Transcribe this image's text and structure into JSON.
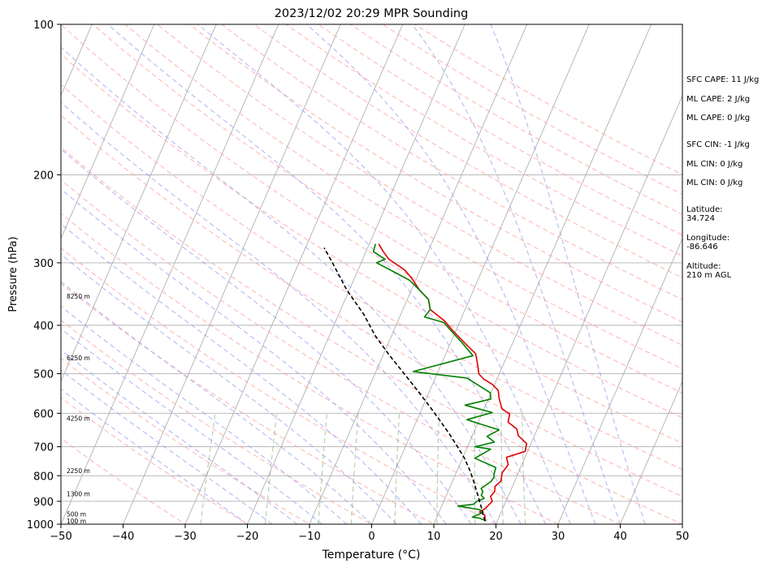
{
  "chart_data": {
    "type": "line",
    "title": "2023/12/02 20:29 MPR Sounding",
    "xlabel": "Temperature (°C)",
    "ylabel": "Pressure (hPa)",
    "xlim": [
      -50,
      50
    ],
    "ylim": [
      1000,
      100
    ],
    "y_scale": "log",
    "x_ticks": [
      "−50",
      "−40",
      "−30",
      "−20",
      "−10",
      "0",
      "10",
      "20",
      "30",
      "40",
      "50"
    ],
    "y_ticks": [
      "100",
      "200",
      "300",
      "400",
      "500",
      "600",
      "700",
      "800",
      "900",
      "1000"
    ],
    "grid": true,
    "height_labels": [
      {
        "p": 985,
        "label": "100 m"
      },
      {
        "p": 955,
        "label": "500 m"
      },
      {
        "p": 870,
        "label": "1300 m"
      },
      {
        "p": 782,
        "label": "2250 m"
      },
      {
        "p": 614,
        "label": "4250 m"
      },
      {
        "p": 465,
        "label": "6250 m"
      },
      {
        "p": 350,
        "label": "8250 m"
      }
    ],
    "series": [
      {
        "role": "temperature",
        "color": "#e00000",
        "points": [
          [
            18.0,
            985
          ],
          [
            17.6,
            960
          ],
          [
            16.5,
            945
          ],
          [
            17.2,
            930
          ],
          [
            17.8,
            900
          ],
          [
            17.2,
            880
          ],
          [
            17.5,
            860
          ],
          [
            17.2,
            840
          ],
          [
            17.8,
            820
          ],
          [
            17.4,
            790
          ],
          [
            17.8,
            760
          ],
          [
            17.0,
            735
          ],
          [
            19.6,
            715
          ],
          [
            19.3,
            690
          ],
          [
            17.4,
            665
          ],
          [
            16.7,
            645
          ],
          [
            14.8,
            625
          ],
          [
            14.5,
            602
          ],
          [
            12.9,
            588
          ],
          [
            11.7,
            560
          ],
          [
            11.0,
            540
          ],
          [
            9.6,
            525
          ],
          [
            7.8,
            512
          ],
          [
            6.7,
            500
          ],
          [
            5.9,
            480
          ],
          [
            4.8,
            456
          ],
          [
            2.4,
            435
          ],
          [
            -0.5,
            410
          ],
          [
            -2.5,
            392
          ],
          [
            -5.6,
            372
          ],
          [
            -6.6,
            355
          ],
          [
            -8.7,
            340
          ],
          [
            -10.8,
            322
          ],
          [
            -12.5,
            310
          ],
          [
            -15.8,
            295
          ],
          [
            -17.2,
            285
          ],
          [
            -18.5,
            275
          ]
        ]
      },
      {
        "role": "dewpoint",
        "color": "#008000",
        "points": [
          [
            18.2,
            985
          ],
          [
            17.0,
            973
          ],
          [
            15.7,
            968
          ],
          [
            16.8,
            952
          ],
          [
            17.0,
            943
          ],
          [
            16.3,
            935
          ],
          [
            12.6,
            920
          ],
          [
            15.0,
            912
          ],
          [
            15.4,
            898
          ],
          [
            16.3,
            888
          ],
          [
            15.6,
            875
          ],
          [
            15.6,
            860
          ],
          [
            15.1,
            848
          ],
          [
            16.2,
            822
          ],
          [
            16.4,
            805
          ],
          [
            16.2,
            795
          ],
          [
            16.0,
            770
          ],
          [
            12.0,
            738
          ],
          [
            13.9,
            708
          ],
          [
            11.2,
            700
          ],
          [
            14.0,
            685
          ],
          [
            12.4,
            667
          ],
          [
            13.9,
            648
          ],
          [
            8.0,
            618
          ],
          [
            11.6,
            598
          ],
          [
            6.7,
            578
          ],
          [
            10.4,
            562
          ],
          [
            9.9,
            546
          ],
          [
            5.1,
            510
          ],
          [
            -4.0,
            495
          ],
          [
            4.5,
            460
          ],
          [
            2.0,
            435
          ],
          [
            -0.8,
            410
          ],
          [
            -2.5,
            395
          ],
          [
            -6.0,
            385
          ],
          [
            -5.6,
            372
          ],
          [
            -6.6,
            355
          ],
          [
            -8.7,
            340
          ],
          [
            -11.0,
            325
          ],
          [
            -13.5,
            315
          ],
          [
            -17.5,
            300
          ],
          [
            -16.4,
            295
          ],
          [
            -18.8,
            285
          ],
          [
            -19.0,
            275
          ]
        ]
      },
      {
        "role": "parcel",
        "color": "#000000",
        "points": [
          [
            18.0,
            985
          ],
          [
            16.6,
            930
          ],
          [
            15.2,
            880
          ],
          [
            13.7,
            830
          ],
          [
            12.2,
            785
          ],
          [
            10.4,
            740
          ],
          [
            8.4,
            700
          ],
          [
            6.2,
            660
          ],
          [
            3.7,
            620
          ],
          [
            1.0,
            580
          ],
          [
            -2.0,
            540
          ],
          [
            -5.3,
            500
          ],
          [
            -8.9,
            460
          ],
          [
            -12.6,
            420
          ],
          [
            -16.0,
            380
          ],
          [
            -20.4,
            340
          ],
          [
            -24.6,
            300
          ],
          [
            -27.0,
            280
          ]
        ]
      }
    ],
    "background": {
      "dry_adiabats_color": "#ff9999",
      "moist_adiabats_color": "#9999ee",
      "mixing_ratio_color": "#66aa66",
      "isotherm_color": "#999999"
    }
  },
  "annotations": {
    "sfc_cape": "SFC CAPE: 11 J/kg",
    "ml_cape_1": "ML CAPE: 2 J/kg",
    "ml_cape_2": "ML CAPE: 0 J/kg",
    "sfc_cin": "SFC CIN: -1 J/kg",
    "ml_cin_1": "ML CIN: 0 J/kg",
    "ml_cin_2": "ML CIN: 0 J/kg",
    "lat_label": "Latitude:",
    "lat_value": "34.724",
    "lon_label": "Longitude:",
    "lon_value": "-86.646",
    "alt_label": "Altitude:",
    "alt_value": "210 m AGL"
  }
}
